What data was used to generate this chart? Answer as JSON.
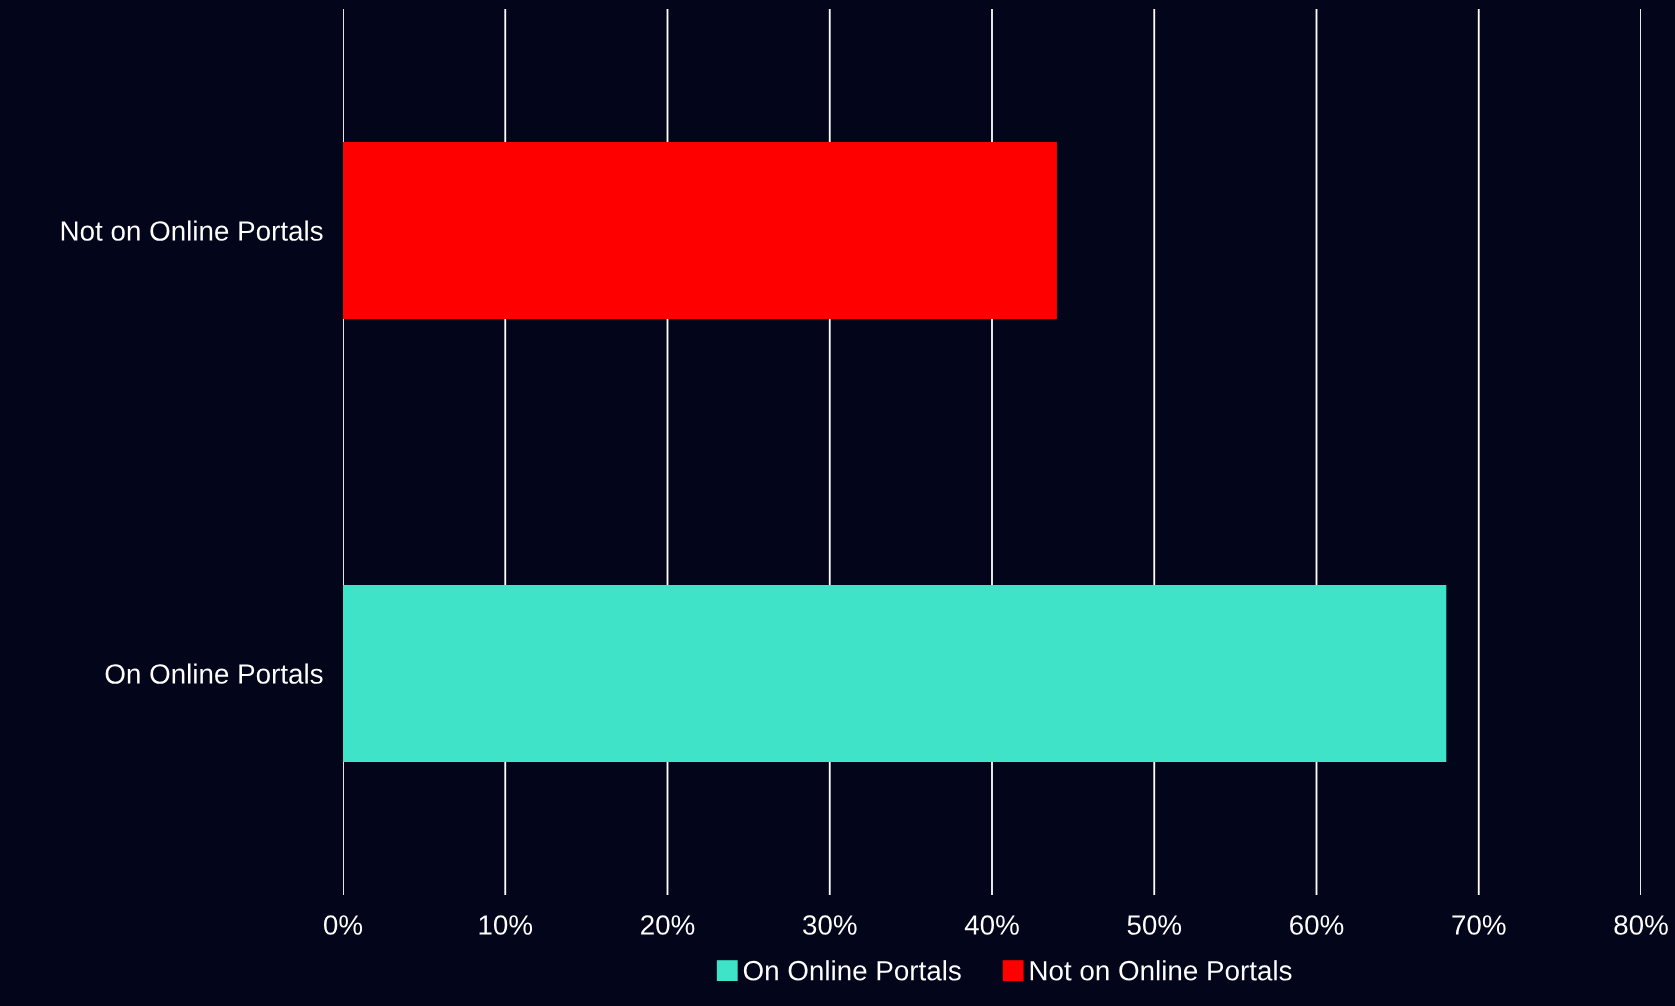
{
  "chart_data": {
    "type": "bar",
    "orientation": "horizontal",
    "categories": [
      "Not on Online Portals",
      "On Online Portals"
    ],
    "series": [
      {
        "name": "On Online Portals",
        "color": "#3ee3c8",
        "values": [
          null,
          68
        ]
      },
      {
        "name": "Not on Online Portals",
        "color": "#ff0000",
        "values": [
          44,
          null
        ]
      }
    ],
    "xlim": [
      0,
      80
    ],
    "xticks": [
      {
        "value": 0,
        "label": "0%"
      },
      {
        "value": 10,
        "label": "10%"
      },
      {
        "value": 20,
        "label": "20%"
      },
      {
        "value": 30,
        "label": "30%"
      },
      {
        "value": 40,
        "label": "40%"
      },
      {
        "value": 50,
        "label": "50%"
      },
      {
        "value": 60,
        "label": "60%"
      },
      {
        "value": 70,
        "label": "70%"
      },
      {
        "value": 80,
        "label": "80%"
      }
    ],
    "grid": "x",
    "legend": "bottom"
  }
}
